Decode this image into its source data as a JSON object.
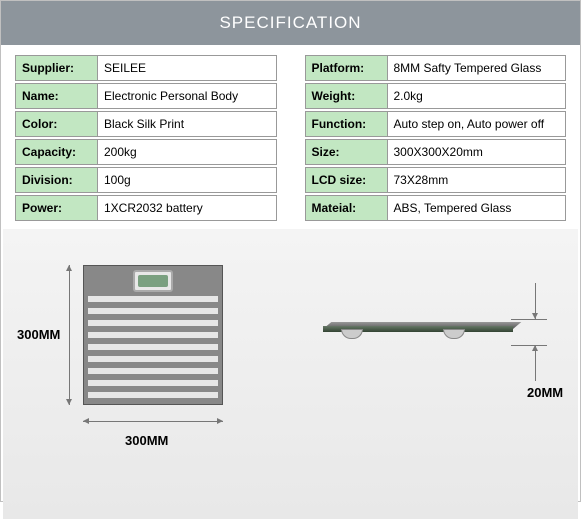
{
  "header": {
    "title": "SPECIFICATION",
    "bg_color": "#8d959c",
    "text_color": "#ffffff"
  },
  "spec": {
    "label_bg": "#c2e7c2",
    "left": [
      {
        "label": "Supplier:",
        "value": "SEILEE"
      },
      {
        "label": "Name:",
        "value": "Electronic Personal Body"
      },
      {
        "label": "Color:",
        "value": "Black Silk Print"
      },
      {
        "label": "Capacity:",
        "value": "200kg"
      },
      {
        "label": "Division:",
        "value": "100g"
      },
      {
        "label": "Power:",
        "value": "1XCR2032 battery"
      }
    ],
    "right": [
      {
        "label": "Platform:",
        "value": "8MM Safty Tempered Glass"
      },
      {
        "label": "Weight:",
        "value": "2.0kg"
      },
      {
        "label": "Function:",
        "value": "Auto step on, Auto power off"
      },
      {
        "label": "Size:",
        "value": "300X300X20mm"
      },
      {
        "label": "LCD size:",
        "value": "73X28mm"
      },
      {
        "label": "Mateial:",
        "value": "ABS, Tempered Glass"
      }
    ]
  },
  "dimensions": {
    "width_label": "300MM",
    "height_label": "300MM",
    "thickness_label": "20MM"
  }
}
